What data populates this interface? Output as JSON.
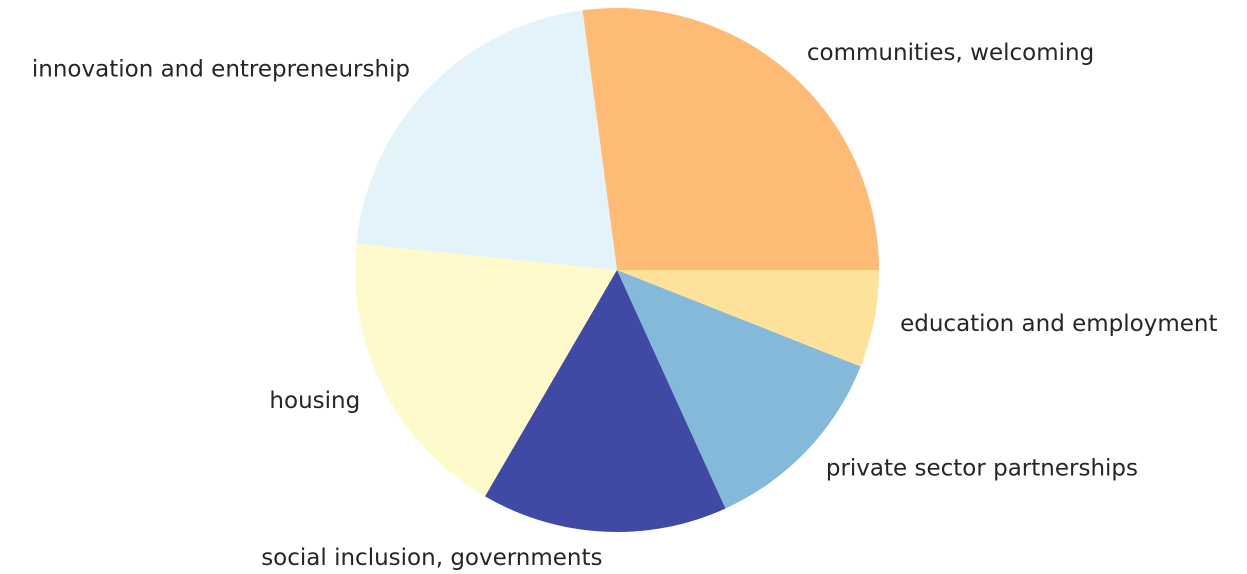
{
  "chart_data": {
    "type": "pie",
    "title": "",
    "start_angle_deg": 0,
    "direction": "counterclockwise",
    "slices": [
      {
        "label": "communities, welcoming",
        "value": 27.1,
        "color": "#fdbb76"
      },
      {
        "label": "innovation and entrepreneurship",
        "value": 21.3,
        "color": "#e4f3f9"
      },
      {
        "label": "housing",
        "value": 18.2,
        "color": "#fffacb"
      },
      {
        "label": "social inclusion, governments",
        "value": 15.2,
        "color": "#404aa4"
      },
      {
        "label": "private sector partnerships",
        "value": 12.2,
        "color": "#85b9da"
      },
      {
        "label": "education and employment",
        "value": 6.0,
        "color": "#fee19b"
      }
    ]
  }
}
